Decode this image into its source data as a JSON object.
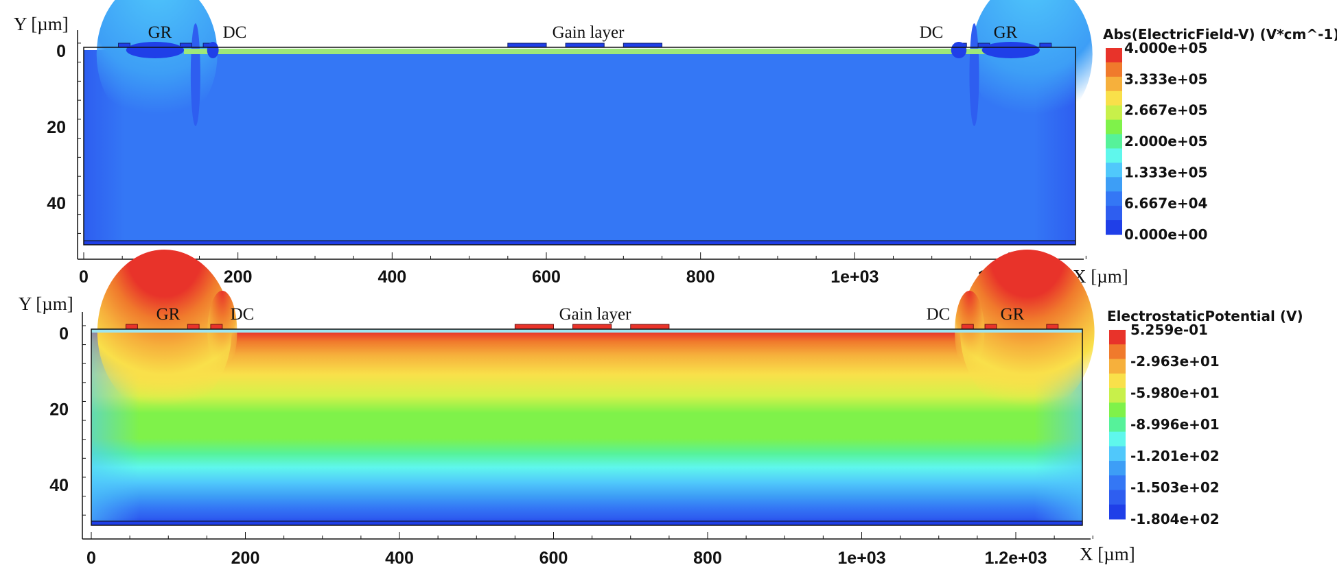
{
  "chart_data": [
    {
      "type": "heatmap",
      "quantity": "Abs(ElectricField-V)",
      "title": "",
      "xlabel": "X [µm]",
      "ylabel": "Y [µm]",
      "xlim": [
        0,
        1310
      ],
      "ylim": [
        52,
        -3
      ],
      "x_ticks": [
        0,
        200,
        400,
        600,
        800,
        1000,
        1200
      ],
      "x_tick_labels": [
        "0",
        "200",
        "400",
        "600",
        "800",
        "1e+03",
        "1.2e+03"
      ],
      "y_ticks": [
        0,
        20,
        40
      ],
      "y_tick_labels": [
        "0",
        "20",
        "40"
      ],
      "region_labels": [
        {
          "text": "GR",
          "x": 100
        },
        {
          "text": "DC",
          "x": 200
        },
        {
          "text": "Gain layer",
          "x": 665
        },
        {
          "text": "DC",
          "x": 1120
        },
        {
          "text": "GR",
          "x": 1215
        }
      ],
      "legend": {
        "title": "Abs(ElectricField-V) (V*cm^-1)",
        "values": [
          "4.000e+05",
          "3.333e+05",
          "2.667e+05",
          "2.000e+05",
          "1.333e+05",
          "6.667e+04",
          "0.000e+00"
        ],
        "colors": [
          "#e8332a",
          "#f07a2c",
          "#f6b03c",
          "#f9e04a",
          "#c8f04a",
          "#7ff24a",
          "#56f29a",
          "#5ff7ec",
          "#50c8fb",
          "#3d9ef6",
          "#3477f5",
          "#2e5ef0",
          "#1f3fe8"
        ]
      },
      "background_level": "#3477f5",
      "surface_level": "#9ee87a"
    },
    {
      "type": "heatmap",
      "quantity": "ElectrostaticPotential",
      "title": "",
      "xlabel": "X [µm]",
      "ylabel": "Y [µm]",
      "xlim": [
        0,
        1310
      ],
      "ylim": [
        52,
        -3
      ],
      "x_ticks": [
        0,
        200,
        400,
        600,
        800,
        1000,
        1200
      ],
      "x_tick_labels": [
        "0",
        "200",
        "400",
        "600",
        "800",
        "1e+03",
        "1.2e+03"
      ],
      "y_ticks": [
        0,
        20,
        40
      ],
      "y_tick_labels": [
        "0",
        "20",
        "40"
      ],
      "region_labels": [
        {
          "text": "GR",
          "x": 100
        },
        {
          "text": "DC",
          "x": 200
        },
        {
          "text": "Gain layer",
          "x": 665
        },
        {
          "text": "DC",
          "x": 1120
        },
        {
          "text": "GR",
          "x": 1215
        }
      ],
      "legend": {
        "title": "ElectrostaticPotential (V)",
        "values": [
          "5.259e-01",
          "-2.963e+01",
          "-5.980e+01",
          "-8.996e+01",
          "-1.201e+02",
          "-1.503e+02",
          "-1.804e+02"
        ],
        "colors": [
          "#e8332a",
          "#f07a2c",
          "#f6b03c",
          "#f9e04a",
          "#c8f04a",
          "#7ff24a",
          "#56f29a",
          "#5ff7ec",
          "#50c8fb",
          "#3d9ef6",
          "#3477f5",
          "#2e5ef0",
          "#1f3fe8"
        ]
      }
    }
  ],
  "x_axis_name": "X [",
  "x_axis_unit": "µm]",
  "y_axis_name": "Y [",
  "y_axis_unit": "µm]"
}
